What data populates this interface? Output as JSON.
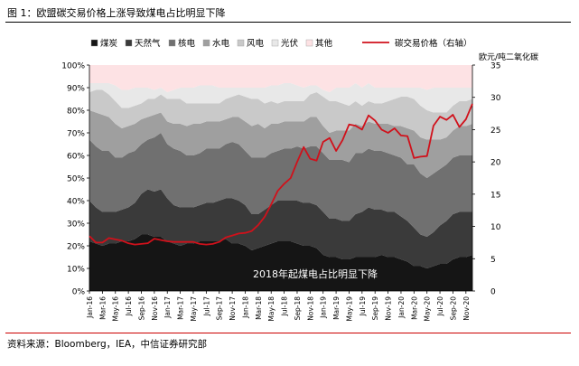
{
  "figure_title": "图 1：欧盟碳交易价格上涨导致煤电占比明显下降",
  "source": "资料来源：Bloomberg，IEA，中信证券研究部",
  "colors": {
    "coal": "#151515",
    "gas": "#3a3a3a",
    "nuclear": "#707070",
    "hydro": "#9f9f9f",
    "wind": "#c9c9c9",
    "solar": "#e8e8e8",
    "other": "#fde2e4",
    "price": "#d0111b",
    "rule_red": "#cc0000"
  },
  "chart_data": {
    "type": "area",
    "stacked": true,
    "percent_stacked": true,
    "annotation": "2018年起煤电占比明显下降",
    "y_left": {
      "ticks": [
        "0%",
        "10%",
        "20%",
        "30%",
        "40%",
        "50%",
        "60%",
        "70%",
        "80%",
        "90%",
        "100%"
      ],
      "lim": [
        0,
        100
      ]
    },
    "y_right": {
      "label": "欧元/吨二氧化碳",
      "ticks": [
        "0",
        "5",
        "10",
        "15",
        "20",
        "25",
        "30",
        "35"
      ],
      "lim": [
        0,
        35
      ]
    },
    "x": [
      "Jan-16",
      "Feb-16",
      "Mar-16",
      "Apr-16",
      "May-16",
      "Jun-16",
      "Jul-16",
      "Aug-16",
      "Sep-16",
      "Oct-16",
      "Nov-16",
      "Dec-16",
      "Jan-17",
      "Feb-17",
      "Mar-17",
      "Apr-17",
      "May-17",
      "Jun-17",
      "Jul-17",
      "Aug-17",
      "Sep-17",
      "Oct-17",
      "Nov-17",
      "Dec-17",
      "Jan-18",
      "Feb-18",
      "Mar-18",
      "Apr-18",
      "May-18",
      "Jun-18",
      "Jul-18",
      "Aug-18",
      "Sep-18",
      "Oct-18",
      "Nov-18",
      "Dec-18",
      "Jan-19",
      "Feb-19",
      "Mar-19",
      "Apr-19",
      "May-19",
      "Jun-19",
      "Jul-19",
      "Aug-19",
      "Sep-19",
      "Oct-19",
      "Nov-19",
      "Dec-19",
      "Jan-20",
      "Feb-20",
      "Mar-20",
      "Apr-20",
      "May-20",
      "Jun-20",
      "Jul-20",
      "Aug-20",
      "Sep-20",
      "Oct-20",
      "Nov-20",
      "Dec-20"
    ],
    "x_tick_labels": [
      "Jan-16",
      "Mar-16",
      "May-16",
      "Jul-16",
      "Sep-16",
      "Nov-16",
      "Jan-17",
      "Mar-17",
      "May-17",
      "Jul-17",
      "Sep-17",
      "Nov-17",
      "Jan-18",
      "Mar-18",
      "May-18",
      "Jul-18",
      "Sep-18",
      "Nov-18",
      "Jan-19",
      "Mar-19",
      "May-19",
      "Jul-19",
      "Sep-19",
      "Nov-19",
      "Jan-20",
      "Mar-20",
      "May-20",
      "Jul-20",
      "Sep-20",
      "Nov-20"
    ],
    "series": [
      {
        "name": "煤炭",
        "key": "coal",
        "values": [
          22,
          21,
          20,
          21,
          21,
          22,
          22,
          23,
          25,
          25,
          24,
          24,
          22,
          21,
          20,
          21,
          21,
          22,
          22,
          22,
          22,
          23,
          21,
          21,
          20,
          18,
          19,
          20,
          21,
          22,
          22,
          22,
          21,
          20,
          20,
          19,
          16,
          15,
          15,
          14,
          14,
          15,
          15,
          15,
          15,
          16,
          15,
          15,
          14,
          13,
          11,
          11,
          10,
          11,
          12,
          12,
          14,
          15,
          15,
          16
        ]
      },
      {
        "name": "天然气",
        "key": "gas",
        "values": [
          18,
          16,
          15,
          14,
          14,
          14,
          15,
          16,
          18,
          20,
          20,
          21,
          19,
          17,
          17,
          16,
          16,
          16,
          17,
          17,
          18,
          18,
          20,
          19,
          18,
          16,
          15,
          16,
          17,
          18,
          18,
          18,
          19,
          19,
          19,
          19,
          19,
          17,
          17,
          17,
          17,
          19,
          20,
          22,
          21,
          20,
          20,
          20,
          19,
          18,
          17,
          14,
          14,
          15,
          17,
          19,
          20,
          20,
          20,
          19
        ]
      },
      {
        "name": "核电",
        "key": "nuclear",
        "values": [
          27,
          27,
          27,
          27,
          24,
          23,
          24,
          23,
          22,
          22,
          24,
          25,
          24,
          25,
          25,
          23,
          23,
          23,
          24,
          24,
          23,
          24,
          25,
          25,
          24,
          25,
          25,
          23,
          23,
          22,
          23,
          23,
          24,
          24,
          25,
          26,
          26,
          26,
          26,
          27,
          26,
          27,
          26,
          26,
          26,
          26,
          26,
          25,
          26,
          25,
          28,
          27,
          26,
          26,
          25,
          25,
          25,
          25,
          25,
          25
        ]
      },
      {
        "name": "水电",
        "key": "hydro",
        "values": [
          13,
          15,
          16,
          15,
          15,
          13,
          12,
          12,
          11,
          10,
          10,
          9,
          10,
          11,
          12,
          13,
          14,
          13,
          12,
          12,
          12,
          11,
          11,
          12,
          13,
          14,
          15,
          13,
          13,
          12,
          12,
          12,
          11,
          12,
          13,
          13,
          12,
          12,
          13,
          13,
          14,
          13,
          12,
          12,
          12,
          12,
          13,
          13,
          14,
          16,
          15,
          16,
          17,
          15,
          13,
          12,
          12,
          13,
          13,
          14
        ]
      },
      {
        "name": "风电",
        "key": "wind",
        "values": [
          8,
          10,
          11,
          10,
          10,
          9,
          8,
          8,
          7,
          8,
          7,
          8,
          10,
          11,
          11,
          10,
          9,
          9,
          8,
          8,
          8,
          9,
          9,
          10,
          11,
          12,
          11,
          11,
          10,
          9,
          9,
          9,
          9,
          9,
          10,
          11,
          13,
          14,
          13,
          12,
          11,
          10,
          9,
          9,
          9,
          9,
          10,
          12,
          13,
          14,
          14,
          14,
          13,
          12,
          12,
          11,
          11,
          11,
          11,
          11
        ]
      },
      {
        "name": "光伏",
        "key": "solar",
        "values": [
          4,
          3,
          3,
          5,
          7,
          8,
          8,
          8,
          7,
          5,
          4,
          3,
          3,
          4,
          5,
          7,
          7,
          8,
          8,
          8,
          7,
          5,
          4,
          3,
          4,
          5,
          5,
          7,
          7,
          8,
          8,
          8,
          7,
          6,
          4,
          3,
          3,
          4,
          6,
          7,
          8,
          8,
          8,
          8,
          7,
          7,
          6,
          5,
          4,
          4,
          5,
          8,
          9,
          11,
          11,
          11,
          8,
          6,
          6,
          5
        ]
      },
      {
        "name": "其他",
        "key": "other",
        "values": [
          8,
          8,
          8,
          8,
          9,
          11,
          11,
          10,
          10,
          10,
          11,
          10,
          12,
          11,
          10,
          10,
          10,
          9,
          9,
          9,
          10,
          10,
          10,
          10,
          10,
          10,
          10,
          10,
          9,
          9,
          8,
          8,
          9,
          10,
          9,
          9,
          11,
          12,
          10,
          10,
          10,
          8,
          10,
          8,
          10,
          10,
          10,
          10,
          10,
          10,
          10,
          10,
          11,
          10,
          10,
          10,
          10,
          10,
          10,
          10
        ]
      }
    ],
    "line": {
      "name": "碳交易价格（右轴）",
      "axis": "right",
      "values": [
        8.5,
        7.5,
        7.5,
        8.2,
        8.0,
        7.8,
        7.4,
        7.2,
        7.3,
        7.4,
        8.1,
        7.9,
        7.7,
        7.6,
        7.6,
        7.6,
        7.6,
        7.3,
        7.2,
        7.3,
        7.6,
        8.3,
        8.6,
        8.9,
        9.0,
        9.3,
        10.2,
        11.5,
        13.4,
        15.5,
        16.6,
        17.5,
        20.0,
        22.3,
        20.5,
        20.2,
        23.1,
        23.7,
        21.7,
        23.4,
        25.8,
        25.6,
        25.0,
        27.2,
        26.4,
        25.0,
        24.5,
        25.2,
        24.1,
        24.0,
        20.6,
        20.8,
        20.9,
        25.6,
        27.0,
        26.5,
        27.3,
        25.4,
        26.6,
        29.0
      ]
    }
  }
}
